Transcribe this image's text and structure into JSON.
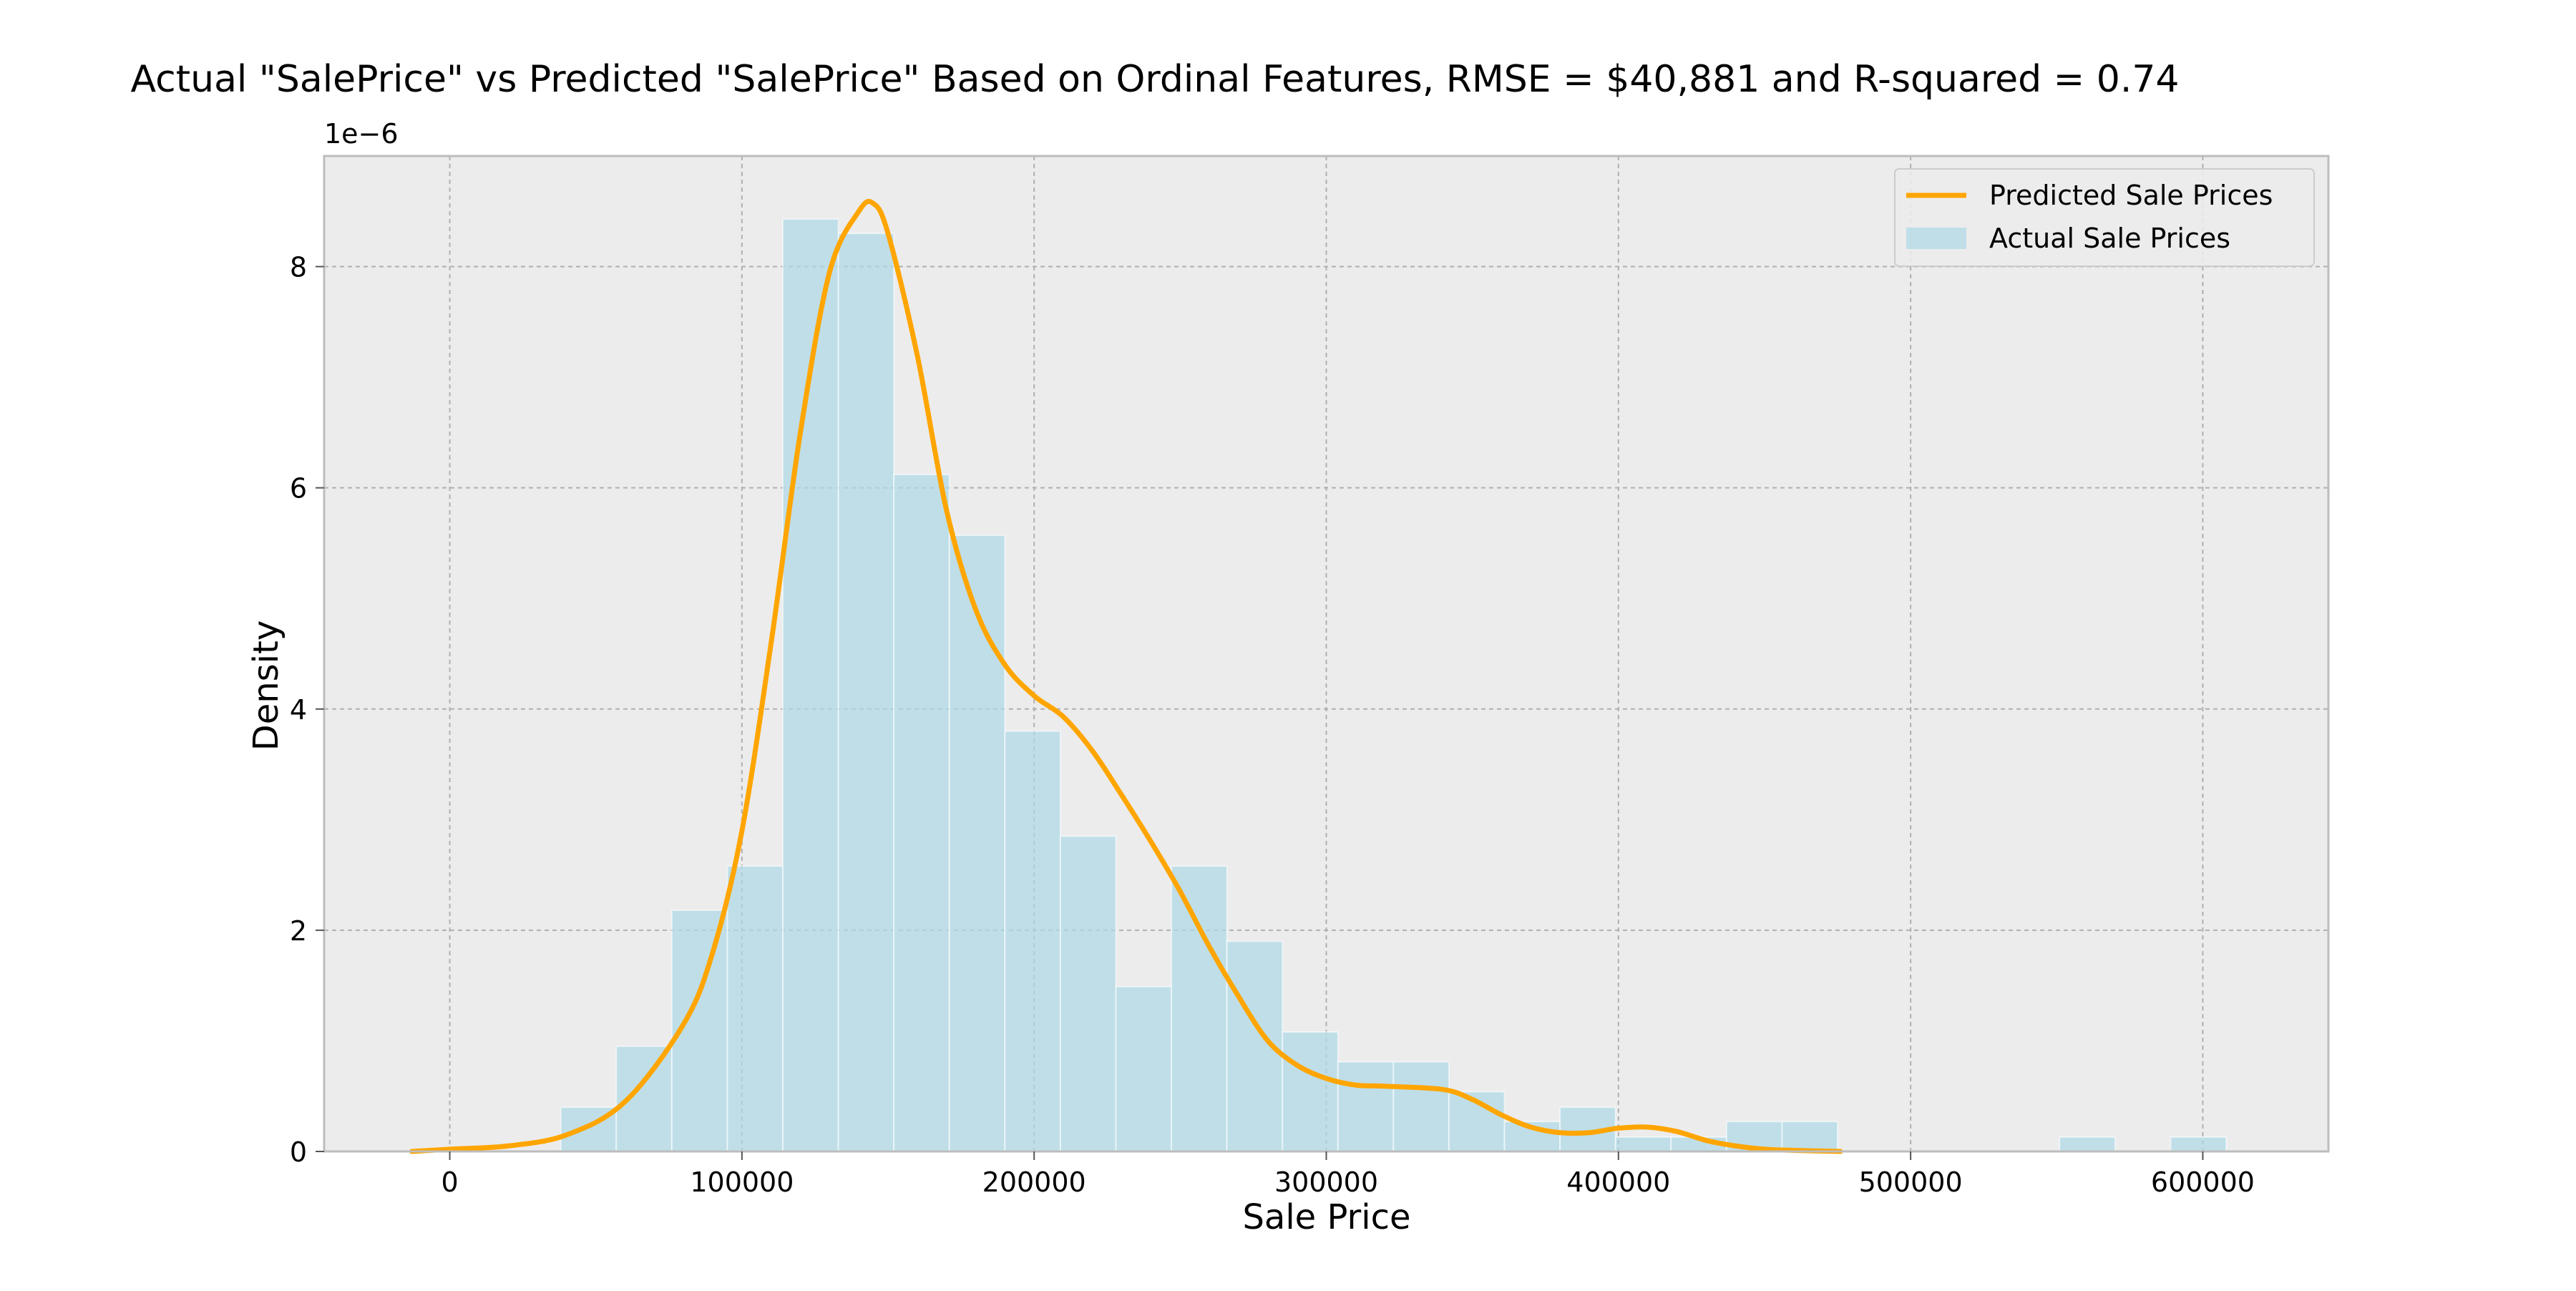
{
  "chart_data": {
    "type": "bar",
    "title": "Actual \"SalePrice\" vs Predicted \"SalePrice\" Based on Ordinal Features, RMSE = $40,881 and R-squared = 0.74",
    "xlabel": "Sale Price",
    "ylabel": "Density",
    "y_offset_label": "1e−6",
    "xlim": [
      -43000,
      643000
    ],
    "ylim": [
      0,
      9.0
    ],
    "x_ticks": [
      0,
      100000,
      200000,
      300000,
      400000,
      500000,
      600000
    ],
    "x_tick_labels": [
      "0",
      "100000",
      "200000",
      "300000",
      "400000",
      "500000",
      "600000"
    ],
    "y_ticks": [
      0,
      2,
      4,
      6,
      8
    ],
    "y_tick_labels": [
      "0",
      "2",
      "4",
      "6",
      "8"
    ],
    "grid": true,
    "legend_position": "top-right",
    "legend": [
      "Predicted Sale Prices",
      "Actual Sale Prices"
    ],
    "colors": {
      "bars": "#add8e6",
      "line": "#ffa500",
      "plot_bg": "#ececec",
      "grid": "#b0b0b0",
      "frame": "#bdbdbd"
    },
    "series": [
      {
        "name": "Actual Sale Prices",
        "type": "histogram",
        "bin_width": 19000,
        "bin_starts": [
          38000,
          57000,
          76000,
          95000,
          114000,
          133000,
          152000,
          171000,
          190000,
          209000,
          228000,
          247000,
          266000,
          285000,
          304000,
          323000,
          342000,
          361000,
          380000,
          399000,
          418000,
          437000,
          456000,
          475000,
          494000,
          513000,
          532000,
          551000,
          570000,
          589000
        ],
        "values": [
          0.4,
          0.95,
          2.18,
          2.58,
          8.43,
          8.3,
          6.12,
          5.57,
          3.8,
          2.85,
          1.49,
          2.58,
          1.9,
          1.08,
          0.81,
          0.81,
          0.54,
          0.27,
          0.4,
          0.13,
          0.13,
          0.27,
          0.27,
          0,
          0,
          0,
          0,
          0.13,
          0,
          0.13
        ]
      },
      {
        "name": "Predicted Sale Prices",
        "type": "line",
        "x": [
          -13000,
          0,
          20000,
          40000,
          60000,
          80000,
          90000,
          100000,
          110000,
          120000,
          130000,
          140000,
          145000,
          150000,
          160000,
          170000,
          180000,
          190000,
          200000,
          210000,
          220000,
          230000,
          240000,
          250000,
          260000,
          270000,
          280000,
          290000,
          300000,
          310000,
          320000,
          340000,
          350000,
          360000,
          370000,
          380000,
          390000,
          400000,
          410000,
          420000,
          430000,
          440000,
          450000,
          460000,
          476000
        ],
        "values": [
          0,
          0.02,
          0.05,
          0.15,
          0.45,
          1.15,
          1.8,
          2.9,
          4.6,
          6.5,
          7.95,
          8.5,
          8.57,
          8.3,
          7.2,
          5.8,
          4.9,
          4.4,
          4.12,
          3.93,
          3.62,
          3.22,
          2.8,
          2.35,
          1.85,
          1.4,
          1.0,
          0.78,
          0.66,
          0.6,
          0.59,
          0.56,
          0.47,
          0.33,
          0.22,
          0.17,
          0.17,
          0.21,
          0.22,
          0.18,
          0.1,
          0.05,
          0.02,
          0.01,
          0
        ]
      }
    ]
  }
}
